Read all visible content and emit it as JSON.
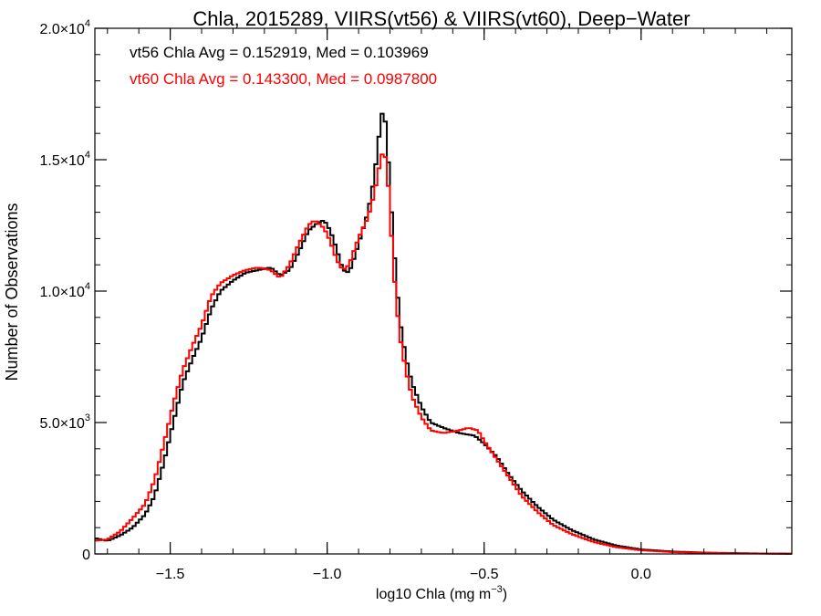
{
  "chart_data": {
    "type": "line",
    "title": "Chla, 2015289, VIIRS(vt56) & VIIRS(vt60), Deep−Water",
    "xlabel": "log10 Chla (mg m",
    "xlabel_sup": "−3",
    "xlabel_close": ")",
    "ylabel": "Number of Observations",
    "xlim": [
      -1.74,
      0.48
    ],
    "ylim": [
      0,
      20000
    ],
    "x_ticks": [
      {
        "value": -1.5,
        "label": "−1.5"
      },
      {
        "value": -1.0,
        "label": "−1.0"
      },
      {
        "value": -0.5,
        "label": "−0.5"
      },
      {
        "value": 0.0,
        "label": "0.0"
      }
    ],
    "y_ticks": [
      {
        "value": 0,
        "label": "0"
      },
      {
        "value": 5000,
        "mant": "5.0",
        "exp": "3"
      },
      {
        "value": 10000,
        "mant": "1.0",
        "exp": "4"
      },
      {
        "value": 15000,
        "mant": "1.5",
        "exp": "4"
      },
      {
        "value": 20000,
        "mant": "2.0",
        "exp": "4"
      }
    ],
    "annotations": [
      {
        "text": "vt56 Chla Avg = 0.152919, Med = 0.103969",
        "color": "#000000"
      },
      {
        "text": "vt60 Chla Avg = 0.143300, Med = 0.0987800",
        "color": "#ff0000"
      }
    ],
    "series": [
      {
        "color": "#000000",
        "step": 0.01,
        "points": [
          [
            -1.74,
            600
          ],
          [
            -1.7,
            500
          ],
          [
            -1.66,
            700
          ],
          [
            -1.62,
            1000
          ],
          [
            -1.58,
            1500
          ],
          [
            -1.55,
            2200
          ],
          [
            -1.52,
            3500
          ],
          [
            -1.49,
            5000
          ],
          [
            -1.46,
            6500
          ],
          [
            -1.43,
            7400
          ],
          [
            -1.4,
            8200
          ],
          [
            -1.37,
            9300
          ],
          [
            -1.34,
            10000
          ],
          [
            -1.3,
            10400
          ],
          [
            -1.26,
            10700
          ],
          [
            -1.22,
            10800
          ],
          [
            -1.18,
            10900
          ],
          [
            -1.15,
            10600
          ],
          [
            -1.12,
            10800
          ],
          [
            -1.09,
            11500
          ],
          [
            -1.06,
            12300
          ],
          [
            -1.03,
            12600
          ],
          [
            -1.01,
            12700
          ],
          [
            -0.99,
            12300
          ],
          [
            -0.97,
            11600
          ],
          [
            -0.95,
            10800
          ],
          [
            -0.93,
            10700
          ],
          [
            -0.91,
            11400
          ],
          [
            -0.89,
            12200
          ],
          [
            -0.87,
            13000
          ],
          [
            -0.85,
            14300
          ],
          [
            -0.83,
            16400
          ],
          [
            -0.82,
            17100
          ],
          [
            -0.81,
            15800
          ],
          [
            -0.8,
            14000
          ],
          [
            -0.79,
            12000
          ],
          [
            -0.77,
            9000
          ],
          [
            -0.75,
            7500
          ],
          [
            -0.73,
            6500
          ],
          [
            -0.7,
            5600
          ],
          [
            -0.67,
            5000
          ],
          [
            -0.63,
            4800
          ],
          [
            -0.58,
            4600
          ],
          [
            -0.53,
            4500
          ],
          [
            -0.5,
            4200
          ],
          [
            -0.46,
            3700
          ],
          [
            -0.42,
            3000
          ],
          [
            -0.38,
            2400
          ],
          [
            -0.33,
            1800
          ],
          [
            -0.28,
            1300
          ],
          [
            -0.22,
            900
          ],
          [
            -0.15,
            550
          ],
          [
            -0.08,
            320
          ],
          [
            0.0,
            170
          ],
          [
            0.1,
            90
          ],
          [
            0.2,
            50
          ],
          [
            0.3,
            30
          ],
          [
            0.4,
            15
          ],
          [
            0.48,
            10
          ]
        ]
      },
      {
        "color": "#ff0000",
        "step": 0.01,
        "points": [
          [
            -1.74,
            500
          ],
          [
            -1.7,
            550
          ],
          [
            -1.66,
            850
          ],
          [
            -1.62,
            1350
          ],
          [
            -1.58,
            1900
          ],
          [
            -1.55,
            2800
          ],
          [
            -1.52,
            4200
          ],
          [
            -1.49,
            5700
          ],
          [
            -1.46,
            7000
          ],
          [
            -1.43,
            7900
          ],
          [
            -1.4,
            8700
          ],
          [
            -1.37,
            9800
          ],
          [
            -1.34,
            10300
          ],
          [
            -1.3,
            10600
          ],
          [
            -1.26,
            10800
          ],
          [
            -1.22,
            10900
          ],
          [
            -1.18,
            10800
          ],
          [
            -1.15,
            10500
          ],
          [
            -1.12,
            11000
          ],
          [
            -1.09,
            11800
          ],
          [
            -1.06,
            12500
          ],
          [
            -1.04,
            12700
          ],
          [
            -1.01,
            12400
          ],
          [
            -0.99,
            11900
          ],
          [
            -0.97,
            11200
          ],
          [
            -0.95,
            10800
          ],
          [
            -0.93,
            11000
          ],
          [
            -0.91,
            11700
          ],
          [
            -0.89,
            12300
          ],
          [
            -0.87,
            12800
          ],
          [
            -0.85,
            13700
          ],
          [
            -0.83,
            15000
          ],
          [
            -0.82,
            15400
          ],
          [
            -0.81,
            14800
          ],
          [
            -0.8,
            13200
          ],
          [
            -0.79,
            11000
          ],
          [
            -0.77,
            8400
          ],
          [
            -0.75,
            7000
          ],
          [
            -0.73,
            6000
          ],
          [
            -0.7,
            5200
          ],
          [
            -0.67,
            4700
          ],
          [
            -0.63,
            4600
          ],
          [
            -0.58,
            4700
          ],
          [
            -0.55,
            4800
          ],
          [
            -0.52,
            4700
          ],
          [
            -0.5,
            4300
          ],
          [
            -0.46,
            3600
          ],
          [
            -0.42,
            2900
          ],
          [
            -0.38,
            2200
          ],
          [
            -0.33,
            1600
          ],
          [
            -0.28,
            1100
          ],
          [
            -0.22,
            750
          ],
          [
            -0.15,
            450
          ],
          [
            -0.08,
            260
          ],
          [
            0.0,
            140
          ],
          [
            0.1,
            70
          ],
          [
            0.2,
            40
          ],
          [
            0.3,
            25
          ],
          [
            0.4,
            12
          ],
          [
            0.48,
            8
          ]
        ]
      }
    ]
  }
}
